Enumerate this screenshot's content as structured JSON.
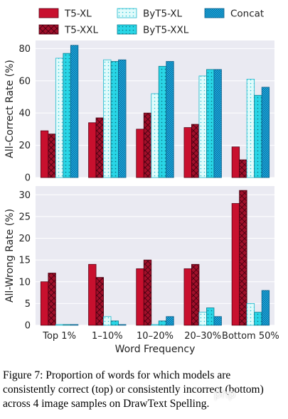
{
  "chart_data": [
    {
      "type": "bar",
      "categories": [
        "Top 1%",
        "1–10%",
        "10–20%",
        "20–30%",
        "Bottom 50%"
      ],
      "ylabel": "All-Correct Rate (%)",
      "xlabel": "",
      "ylim": [
        0,
        85
      ],
      "yticks": [
        0,
        20,
        40,
        60,
        80
      ],
      "grid": true,
      "series": [
        {
          "name": "T5-XL",
          "values": [
            29,
            34,
            30,
            31,
            19
          ]
        },
        {
          "name": "T5-XXL",
          "values": [
            27,
            37,
            40,
            33,
            11
          ]
        },
        {
          "name": "ByT5-XL",
          "values": [
            74,
            73,
            52,
            63,
            61
          ]
        },
        {
          "name": "ByT5-XXL",
          "values": [
            77,
            72,
            69,
            67,
            51
          ]
        },
        {
          "name": "Concat",
          "values": [
            82,
            73,
            72,
            67,
            56
          ]
        }
      ]
    },
    {
      "type": "bar",
      "categories": [
        "Top 1%",
        "1–10%",
        "10–20%",
        "20–30%",
        "Bottom 50%"
      ],
      "ylabel": "All-Wrong Rate (%)",
      "xlabel": "Word Frequency",
      "ylim": [
        0,
        32
      ],
      "yticks": [
        0,
        5,
        10,
        15,
        20,
        25,
        30
      ],
      "grid": true,
      "series": [
        {
          "name": "T5-XL",
          "values": [
            10,
            14,
            13,
            13,
            28
          ]
        },
        {
          "name": "T5-XXL",
          "values": [
            12,
            11,
            15,
            14,
            31
          ]
        },
        {
          "name": "ByT5-XL",
          "values": [
            0,
            2,
            0,
            3,
            5
          ]
        },
        {
          "name": "ByT5-XXL",
          "values": [
            0,
            1,
            1,
            4,
            3
          ]
        },
        {
          "name": "Concat",
          "values": [
            0,
            0,
            2,
            2,
            8
          ]
        }
      ]
    }
  ],
  "legend": {
    "placement": "top",
    "entries": [
      "T5-XL",
      "T5-XXL",
      "ByT5-XL",
      "ByT5-XXL",
      "Concat"
    ]
  },
  "colors": {
    "t5xl": "#c8102e",
    "t5xxl": "#a0102a",
    "byt5xl": "#e0fbfb",
    "byt5xxl": "#29d6e6",
    "concat": "#1aa9e0",
    "plot_bg": "#eaeaf2"
  },
  "caption": "Figure 7: Proportion of words for which models are consistently correct (top) or consistently incorrect (bottom) across 4 image samples on DrawText Spelling.",
  "watermark": "php"
}
